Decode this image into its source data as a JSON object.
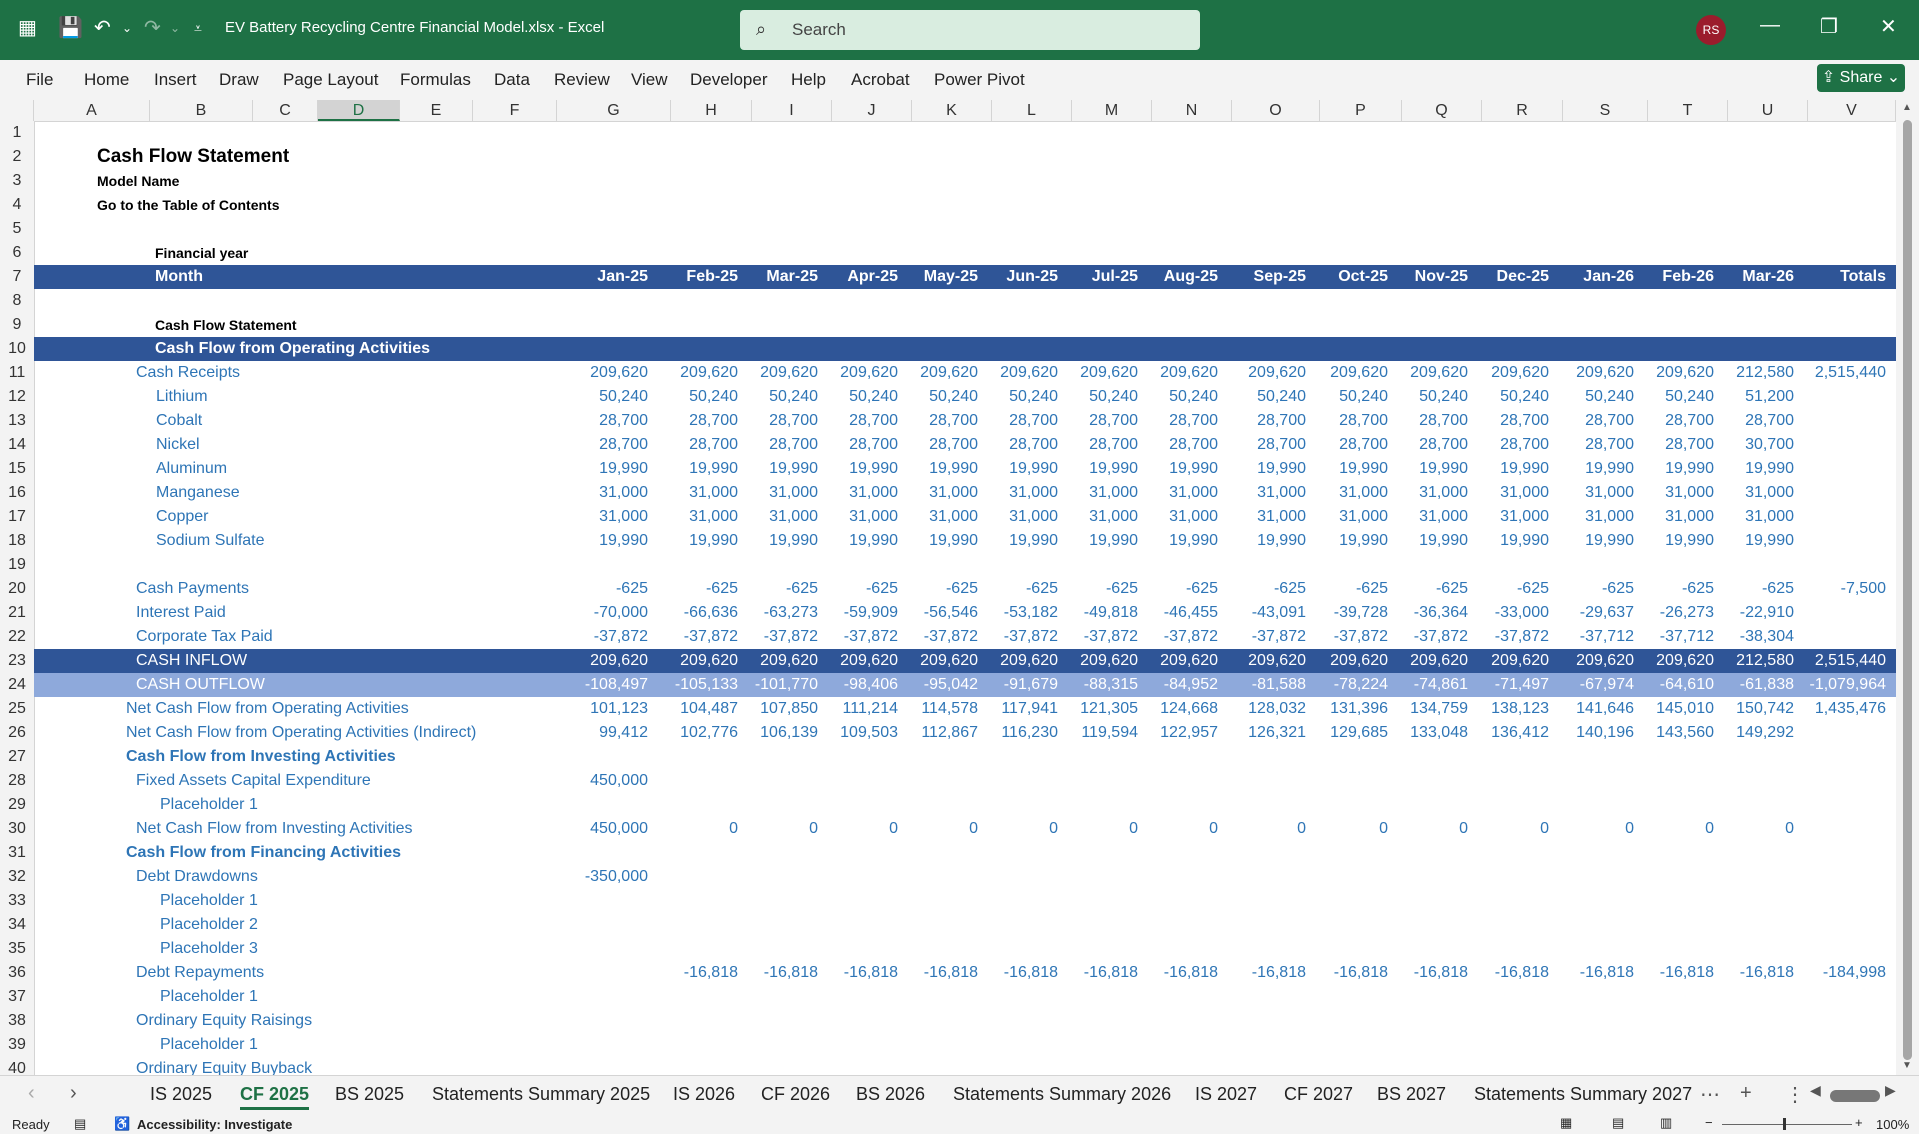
{
  "window": {
    "title": "EV Battery Recycling Centre Financial Model.xlsx  -  Excel",
    "search_placeholder": "Search",
    "avatar": "RS"
  },
  "ribbon": {
    "items": [
      "File",
      "Home",
      "Insert",
      "Draw",
      "Page Layout",
      "Formulas",
      "Data",
      "Review",
      "View",
      "Developer",
      "Help",
      "Acrobat",
      "Power Pivot"
    ],
    "share": "Share"
  },
  "columns": [
    "A",
    "B",
    "C",
    "D",
    "E",
    "F",
    "G",
    "H",
    "I",
    "J",
    "K",
    "L",
    "M",
    "N",
    "O",
    "P",
    "Q",
    "R",
    "S",
    "T",
    "U",
    "V"
  ],
  "selected_column": "D",
  "rows": [
    "1",
    "2",
    "3",
    "4",
    "5",
    "6",
    "7",
    "8",
    "9",
    "10",
    "11",
    "12",
    "13",
    "14",
    "15",
    "16",
    "17",
    "18",
    "19",
    "20",
    "21",
    "22",
    "23",
    "24",
    "25",
    "26",
    "27",
    "28",
    "29",
    "30",
    "31",
    "32",
    "33",
    "34",
    "35",
    "36",
    "37",
    "38",
    "39",
    "40"
  ],
  "sheet": {
    "title": "Cash Flow Statement",
    "model_name": "Model Name",
    "toc_link": "Go to the Table of Contents",
    "financial_year": "Financial year",
    "month_label": "Month",
    "months": [
      "Jan-25",
      "Feb-25",
      "Mar-25",
      "Apr-25",
      "May-25",
      "Jun-25",
      "Jul-25",
      "Aug-25",
      "Sep-25",
      "Oct-25",
      "Nov-25",
      "Dec-25",
      "Jan-26",
      "Feb-26",
      "Mar-26",
      "Totals"
    ],
    "section_title": "Cash Flow Statement",
    "operating_header": "Cash Flow from Operating Activities",
    "lines": [
      {
        "label": "Cash Receipts",
        "indent": 1,
        "values": [
          "209,620",
          "209,620",
          "209,620",
          "209,620",
          "209,620",
          "209,620",
          "209,620",
          "209,620",
          "209,620",
          "209,620",
          "209,620",
          "209,620",
          "209,620",
          "209,620",
          "212,580",
          "2,515,440"
        ]
      },
      {
        "label": "Lithium",
        "indent": 2,
        "values": [
          "50,240",
          "50,240",
          "50,240",
          "50,240",
          "50,240",
          "50,240",
          "50,240",
          "50,240",
          "50,240",
          "50,240",
          "50,240",
          "50,240",
          "50,240",
          "50,240",
          "51,200",
          ""
        ]
      },
      {
        "label": "Cobalt",
        "indent": 2,
        "values": [
          "28,700",
          "28,700",
          "28,700",
          "28,700",
          "28,700",
          "28,700",
          "28,700",
          "28,700",
          "28,700",
          "28,700",
          "28,700",
          "28,700",
          "28,700",
          "28,700",
          "28,700",
          ""
        ]
      },
      {
        "label": "Nickel",
        "indent": 2,
        "values": [
          "28,700",
          "28,700",
          "28,700",
          "28,700",
          "28,700",
          "28,700",
          "28,700",
          "28,700",
          "28,700",
          "28,700",
          "28,700",
          "28,700",
          "28,700",
          "28,700",
          "30,700",
          ""
        ]
      },
      {
        "label": "Aluminum",
        "indent": 2,
        "values": [
          "19,990",
          "19,990",
          "19,990",
          "19,990",
          "19,990",
          "19,990",
          "19,990",
          "19,990",
          "19,990",
          "19,990",
          "19,990",
          "19,990",
          "19,990",
          "19,990",
          "19,990",
          ""
        ]
      },
      {
        "label": "Manganese",
        "indent": 2,
        "values": [
          "31,000",
          "31,000",
          "31,000",
          "31,000",
          "31,000",
          "31,000",
          "31,000",
          "31,000",
          "31,000",
          "31,000",
          "31,000",
          "31,000",
          "31,000",
          "31,000",
          "31,000",
          ""
        ]
      },
      {
        "label": "Copper",
        "indent": 2,
        "values": [
          "31,000",
          "31,000",
          "31,000",
          "31,000",
          "31,000",
          "31,000",
          "31,000",
          "31,000",
          "31,000",
          "31,000",
          "31,000",
          "31,000",
          "31,000",
          "31,000",
          "31,000",
          ""
        ]
      },
      {
        "label": "Sodium Sulfate",
        "indent": 2,
        "values": [
          "19,990",
          "19,990",
          "19,990",
          "19,990",
          "19,990",
          "19,990",
          "19,990",
          "19,990",
          "19,990",
          "19,990",
          "19,990",
          "19,990",
          "19,990",
          "19,990",
          "19,990",
          ""
        ]
      },
      {
        "label": "",
        "indent": 1,
        "values": [
          "",
          "",
          "",
          "",
          "",
          "",
          "",
          "",
          "",
          "",
          "",
          "",
          "",
          "",
          "",
          ""
        ]
      },
      {
        "label": "Cash Payments",
        "indent": 1,
        "values": [
          "-625",
          "-625",
          "-625",
          "-625",
          "-625",
          "-625",
          "-625",
          "-625",
          "-625",
          "-625",
          "-625",
          "-625",
          "-625",
          "-625",
          "-625",
          "-7,500"
        ]
      },
      {
        "label": "Interest Paid",
        "indent": 1,
        "values": [
          "-70,000",
          "-66,636",
          "-63,273",
          "-59,909",
          "-56,546",
          "-53,182",
          "-49,818",
          "-46,455",
          "-43,091",
          "-39,728",
          "-36,364",
          "-33,000",
          "-29,637",
          "-26,273",
          "-22,910",
          ""
        ]
      },
      {
        "label": "Corporate Tax Paid",
        "indent": 1,
        "values": [
          "-37,872",
          "-37,872",
          "-37,872",
          "-37,872",
          "-37,872",
          "-37,872",
          "-37,872",
          "-37,872",
          "-37,872",
          "-37,872",
          "-37,872",
          "-37,872",
          "-37,712",
          "-37,712",
          "-38,304",
          ""
        ]
      }
    ],
    "cash_inflow": {
      "label": "CASH INFLOW",
      "values": [
        "209,620",
        "209,620",
        "209,620",
        "209,620",
        "209,620",
        "209,620",
        "209,620",
        "209,620",
        "209,620",
        "209,620",
        "209,620",
        "209,620",
        "209,620",
        "209,620",
        "212,580",
        "2,515,440"
      ]
    },
    "cash_outflow": {
      "label": "CASH OUTFLOW",
      "values": [
        "-108,497",
        "-105,133",
        "-101,770",
        "-98,406",
        "-95,042",
        "-91,679",
        "-88,315",
        "-84,952",
        "-81,588",
        "-78,224",
        "-74,861",
        "-71,497",
        "-67,974",
        "-64,610",
        "-61,838",
        "-1,079,964"
      ]
    },
    "net_operating": {
      "label": "Net Cash Flow from Operating Activities",
      "values": [
        "101,123",
        "104,487",
        "107,850",
        "111,214",
        "114,578",
        "117,941",
        "121,305",
        "124,668",
        "128,032",
        "131,396",
        "134,759",
        "138,123",
        "141,646",
        "145,010",
        "150,742",
        "1,435,476"
      ]
    },
    "net_operating_indirect": {
      "label": "Net Cash Flow from Operating Activities (Indirect)",
      "values": [
        "99,412",
        "102,776",
        "106,139",
        "109,503",
        "112,867",
        "116,230",
        "119,594",
        "122,957",
        "126,321",
        "129,685",
        "133,048",
        "136,412",
        "140,196",
        "143,560",
        "149,292",
        ""
      ]
    },
    "investing_header": "Cash Flow from Investing Activities",
    "fixed_assets": {
      "label": "Fixed Assets Capital Expenditure",
      "values": [
        "450,000",
        "",
        "",
        "",
        "",
        "",
        "",
        "",
        "",
        "",
        "",
        "",
        "",
        "",
        "",
        ""
      ]
    },
    "placeholder_1": "Placeholder 1",
    "net_investing": {
      "label": "Net Cash Flow from Investing Activities",
      "values": [
        "450,000",
        "0",
        "0",
        "0",
        "0",
        "0",
        "0",
        "0",
        "0",
        "0",
        "0",
        "0",
        "0",
        "0",
        "0",
        ""
      ]
    },
    "financing_header": "Cash Flow from Financing Activities",
    "debt_drawdowns": {
      "label": "Debt Drawdowns",
      "values": [
        "-350,000",
        "",
        "",
        "",
        "",
        "",
        "",
        "",
        "",
        "",
        "",
        "",
        "",
        "",
        "",
        ""
      ]
    },
    "placeholder_2": "Placeholder 2",
    "placeholder_3": "Placeholder 3",
    "debt_repayments": {
      "label": "Debt Repayments",
      "values": [
        "",
        "-16,818",
        "-16,818",
        "-16,818",
        "-16,818",
        "-16,818",
        "-16,818",
        "-16,818",
        "-16,818",
        "-16,818",
        "-16,818",
        "-16,818",
        "-16,818",
        "-16,818",
        "-16,818",
        "-184,998"
      ]
    },
    "equity_raisings": "Ordinary Equity Raisings",
    "partial_row": "Ordinary Equity Buyback"
  },
  "tabs": [
    "IS 2025",
    "CF 2025",
    "BS 2025",
    "Statements Summary 2025",
    "IS 2026",
    "CF 2026",
    "BS 2026",
    "Statements Summary 2026",
    "IS 2027",
    "CF 2027",
    "BS 2027",
    "Statements Summary 2027"
  ],
  "active_tab": "CF 2025",
  "status": {
    "ready": "Ready",
    "accessibility": "Accessibility: Investigate",
    "zoom": "100%"
  },
  "colors": {
    "excel_green": "#1e7145",
    "navy": "#2f5597",
    "light_blue": "#8ea9db",
    "text_blue": "#2e75b6"
  }
}
